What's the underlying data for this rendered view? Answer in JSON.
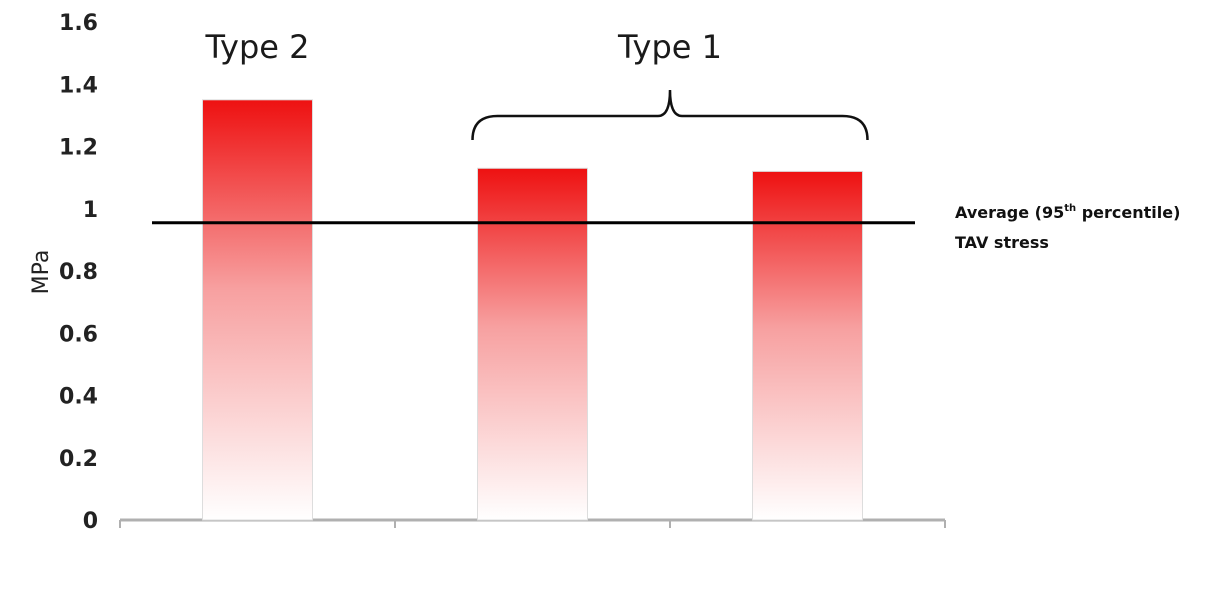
{
  "chart_data": {
    "type": "bar",
    "categories": [
      "",
      "",
      ""
    ],
    "values": [
      1.35,
      1.13,
      1.12
    ],
    "ylabel": "MPa",
    "xlabel": "",
    "ylim": [
      0,
      1.6
    ],
    "yticks": [
      "0",
      "0.2",
      "0.4",
      "0.6",
      "0.8",
      "1",
      "1.2",
      "1.4",
      "1.6"
    ],
    "grid": false,
    "bar_color_top": "#ee1111",
    "bar_color_bottom": "#ffffff",
    "reference_line": {
      "value": 0.955,
      "label_prefix": "Average (95",
      "label_sup": "th",
      "label_suffix": " percentile)",
      "label_line2": "TAV stress"
    },
    "group_labels": [
      {
        "text": "Type 2",
        "category_index": 0
      },
      {
        "text": "Type 1",
        "category_index": [
          1,
          2
        ]
      }
    ]
  }
}
